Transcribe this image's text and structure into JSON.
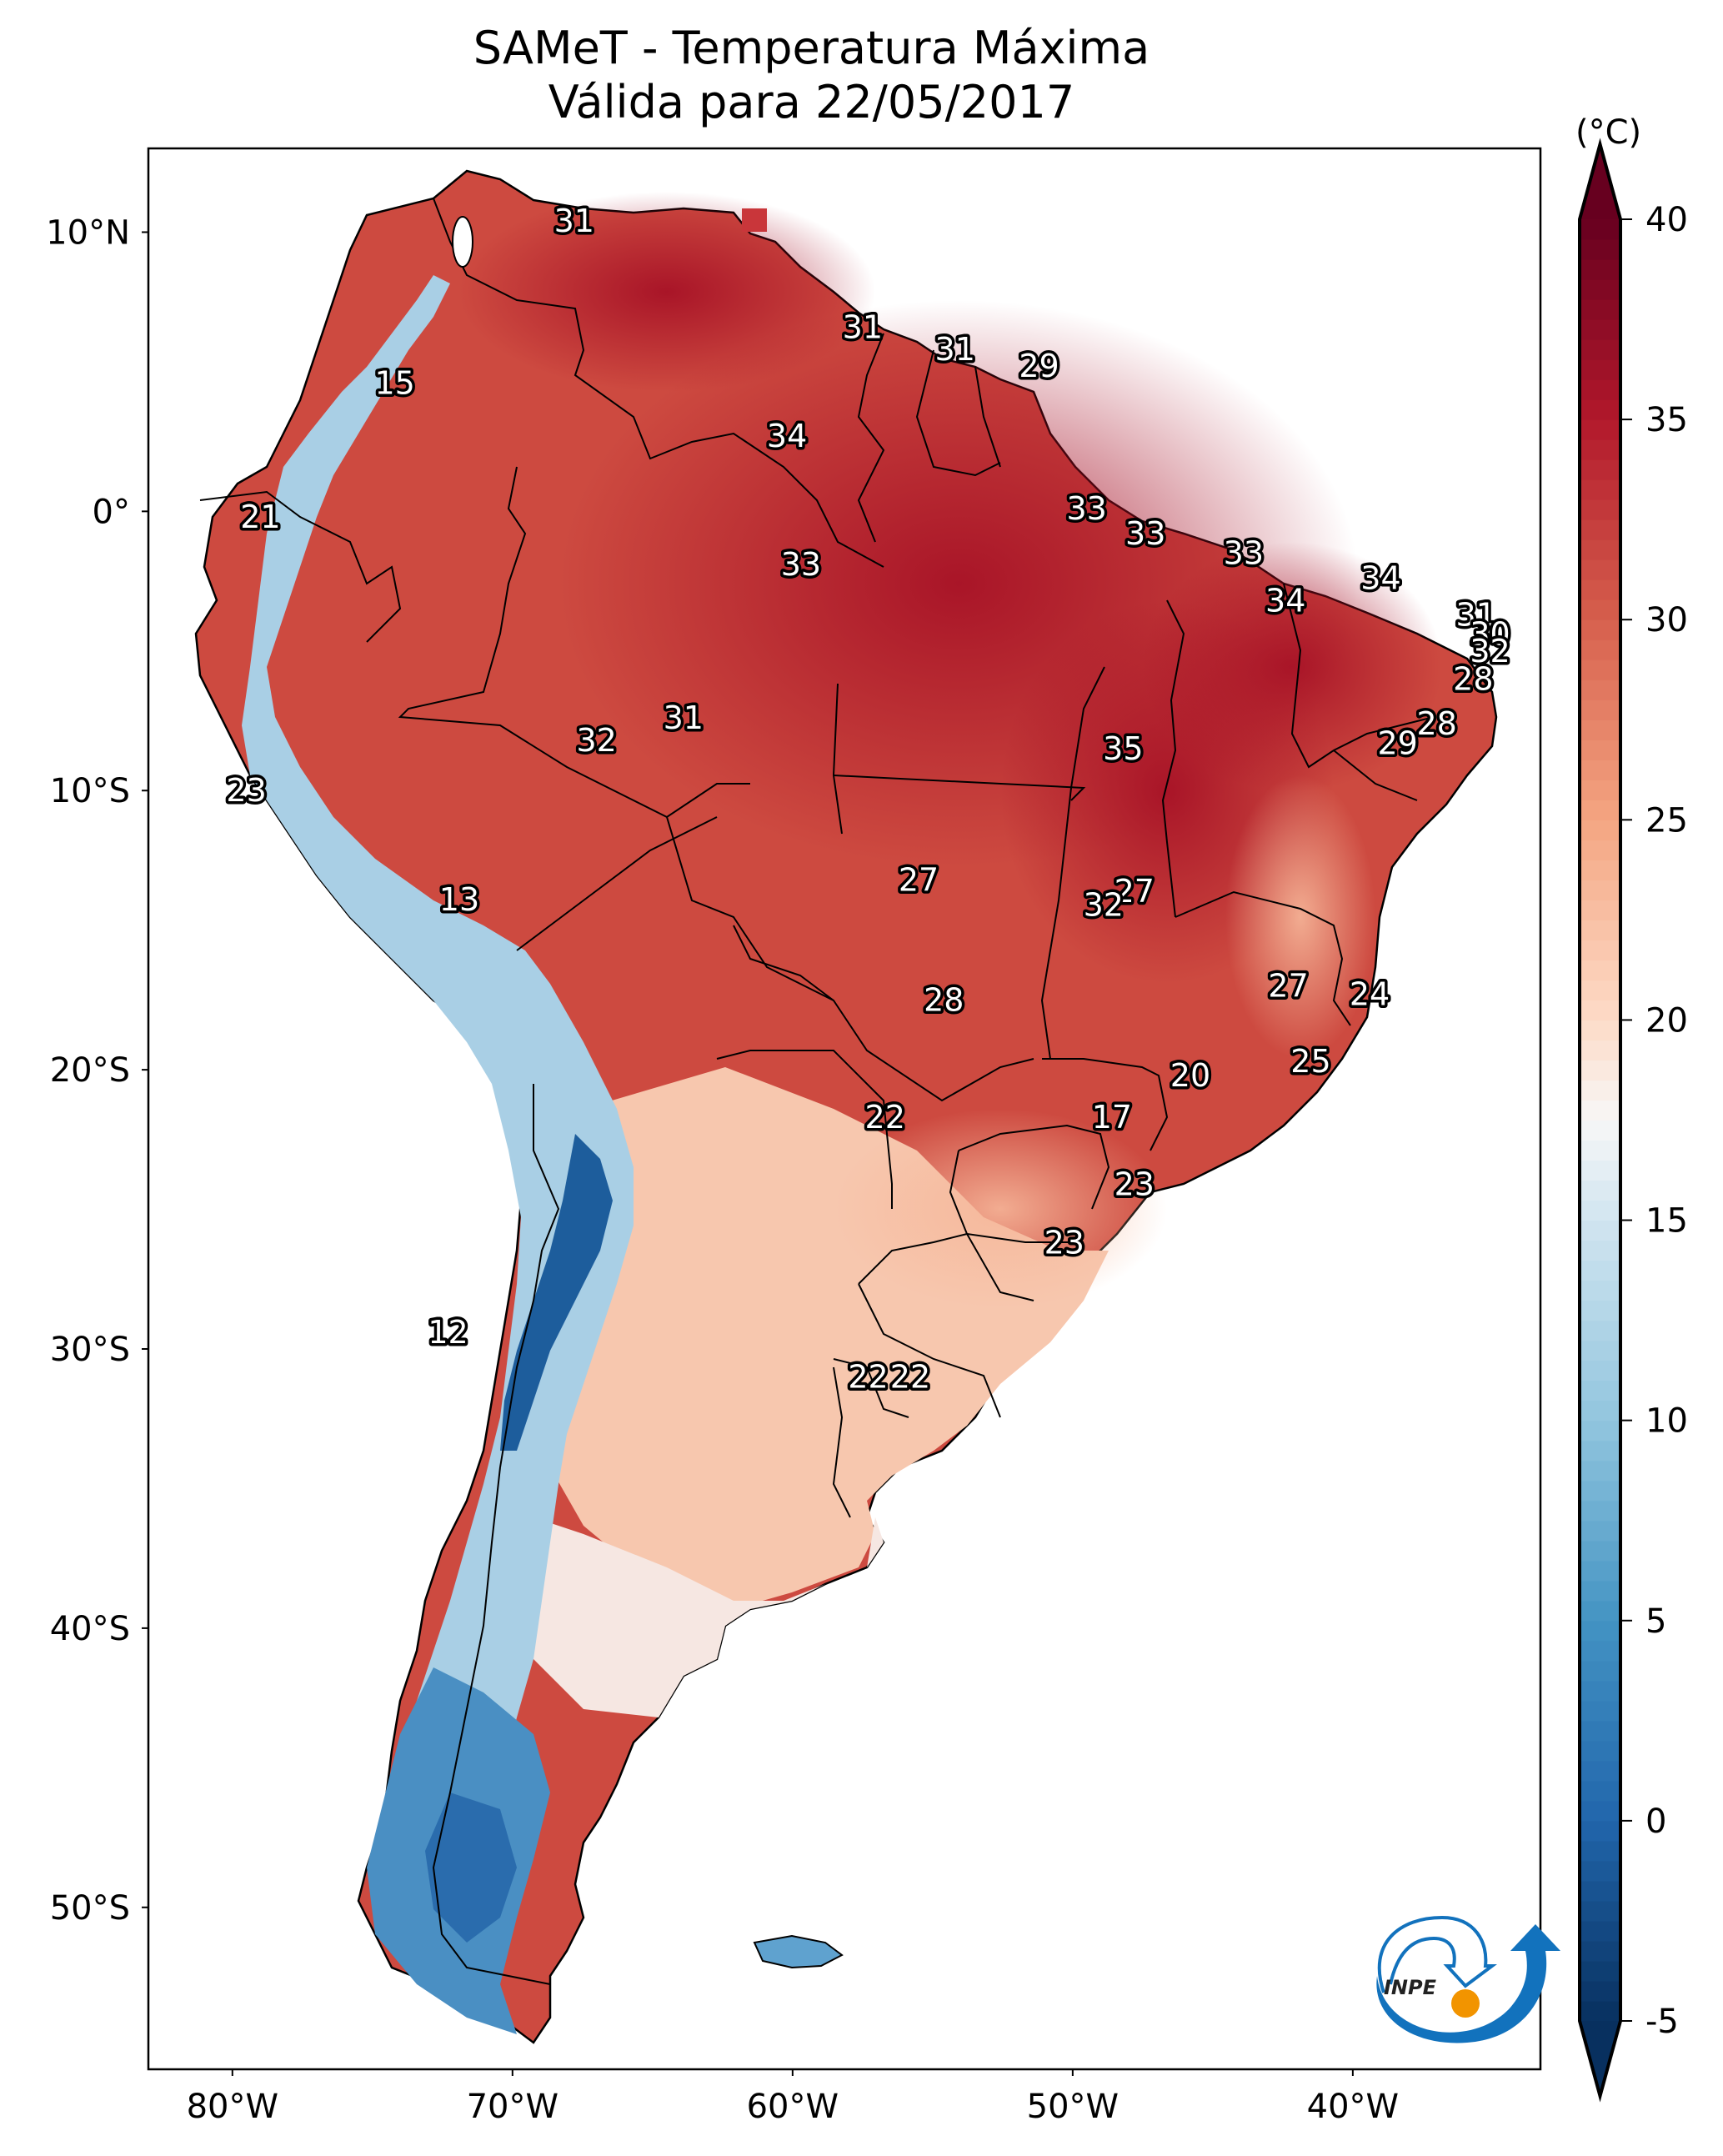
{
  "chart_data": {
    "type": "heatmap",
    "title": "SAMeT - Temperatura Máxima",
    "subtitle": "Válida para 22/05/2017",
    "variable": "Temperatura Máxima",
    "valid_date": "22/05/2017",
    "units_label": "(°C)",
    "region": "South America",
    "lon_range": [
      -83,
      -33.3
    ],
    "lat_range": [
      -55.8,
      13
    ],
    "x_ticks": [
      {
        "value": -80,
        "label": "80°W"
      },
      {
        "value": -70,
        "label": "70°W"
      },
      {
        "value": -60,
        "label": "60°W"
      },
      {
        "value": -50,
        "label": "50°W"
      },
      {
        "value": -40,
        "label": "40°W"
      }
    ],
    "y_ticks": [
      {
        "value": 10,
        "label": "10°N"
      },
      {
        "value": 0,
        "label": "0°"
      },
      {
        "value": -10,
        "label": "10°S"
      },
      {
        "value": -20,
        "label": "20°S"
      },
      {
        "value": -30,
        "label": "30°S"
      },
      {
        "value": -40,
        "label": "40°S"
      },
      {
        "value": -50,
        "label": "50°S"
      }
    ],
    "colorbar": {
      "colormap": "RdBu_r",
      "range": [
        -5,
        40
      ],
      "extend": "both",
      "ticks": [
        -5,
        0,
        5,
        10,
        15,
        20,
        25,
        30,
        35,
        40
      ],
      "tick_labels": [
        "-5",
        "0",
        "5",
        "10",
        "15",
        "20",
        "25",
        "30",
        "35",
        "40"
      ],
      "stops": [
        {
          "value": -5,
          "color": "#08305f"
        },
        {
          "value": 0,
          "color": "#2166ac"
        },
        {
          "value": 5,
          "color": "#4393c3"
        },
        {
          "value": 10,
          "color": "#92c5de"
        },
        {
          "value": 15,
          "color": "#d1e5f0"
        },
        {
          "value": 17.5,
          "color": "#f7f7f7"
        },
        {
          "value": 20,
          "color": "#fddbc7"
        },
        {
          "value": 25,
          "color": "#f4a582"
        },
        {
          "value": 30,
          "color": "#d6604d"
        },
        {
          "value": 35,
          "color": "#b2182b"
        },
        {
          "value": 40,
          "color": "#67001f"
        }
      ]
    },
    "point_labels": [
      {
        "lon": -67.8,
        "lat": 10.4,
        "value": 31
      },
      {
        "lon": -74.2,
        "lat": 4.6,
        "value": 15
      },
      {
        "lon": -57.5,
        "lat": 6.6,
        "value": 31
      },
      {
        "lon": -54.2,
        "lat": 5.8,
        "value": 31
      },
      {
        "lon": -51.2,
        "lat": 5.2,
        "value": 29
      },
      {
        "lon": -60.2,
        "lat": 2.7,
        "value": 34
      },
      {
        "lon": -79.0,
        "lat": -0.2,
        "value": 21
      },
      {
        "lon": -49.5,
        "lat": 0.1,
        "value": 33
      },
      {
        "lon": -47.4,
        "lat": -0.8,
        "value": 33
      },
      {
        "lon": -59.7,
        "lat": -1.9,
        "value": 33
      },
      {
        "lon": -43.9,
        "lat": -1.5,
        "value": 33
      },
      {
        "lon": -39.0,
        "lat": -2.4,
        "value": 34
      },
      {
        "lon": -42.4,
        "lat": -3.2,
        "value": 34
      },
      {
        "lon": -35.6,
        "lat": -3.7,
        "value": 31
      },
      {
        "lon": -35.1,
        "lat": -4.4,
        "value": 30
      },
      {
        "lon": -35.1,
        "lat": -5.0,
        "value": 32
      },
      {
        "lon": -35.7,
        "lat": -6.0,
        "value": 28
      },
      {
        "lon": -37.0,
        "lat": -7.6,
        "value": 28
      },
      {
        "lon": -38.4,
        "lat": -8.3,
        "value": 29
      },
      {
        "lon": -63.9,
        "lat": -7.4,
        "value": 31
      },
      {
        "lon": -67.0,
        "lat": -8.2,
        "value": 32
      },
      {
        "lon": -48.2,
        "lat": -8.5,
        "value": 35
      },
      {
        "lon": -79.5,
        "lat": -10.0,
        "value": 23
      },
      {
        "lon": -55.5,
        "lat": -13.2,
        "value": 27
      },
      {
        "lon": -47.8,
        "lat": -13.6,
        "value": 27
      },
      {
        "lon": -48.9,
        "lat": -14.1,
        "value": 32
      },
      {
        "lon": -71.9,
        "lat": -13.9,
        "value": 13
      },
      {
        "lon": -42.3,
        "lat": -17.0,
        "value": 27
      },
      {
        "lon": -54.6,
        "lat": -17.5,
        "value": 28
      },
      {
        "lon": -39.4,
        "lat": -17.3,
        "value": 24
      },
      {
        "lon": -41.5,
        "lat": -19.7,
        "value": 25
      },
      {
        "lon": -45.8,
        "lat": -20.2,
        "value": 20
      },
      {
        "lon": -56.7,
        "lat": -21.7,
        "value": 22
      },
      {
        "lon": -48.6,
        "lat": -21.7,
        "value": 17
      },
      {
        "lon": -47.8,
        "lat": -24.1,
        "value": 23
      },
      {
        "lon": -50.3,
        "lat": -26.2,
        "value": 23
      },
      {
        "lon": -72.3,
        "lat": -29.4,
        "value": 12
      },
      {
        "lon": -57.3,
        "lat": -31.0,
        "value": 22
      },
      {
        "lon": -55.8,
        "lat": -31.0,
        "value": 22
      }
    ],
    "logo": "INPE"
  }
}
